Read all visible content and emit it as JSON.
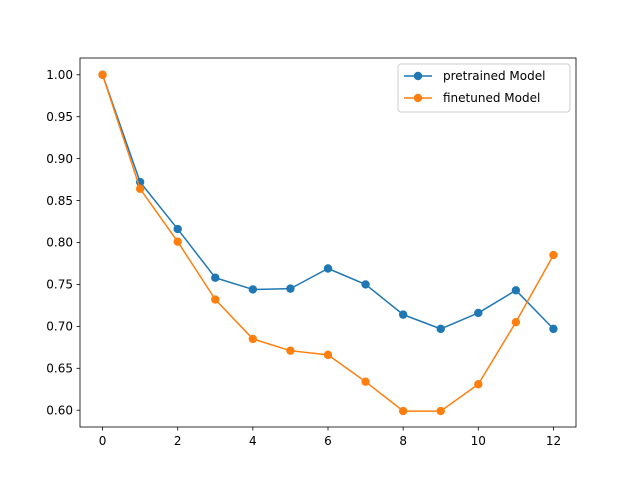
{
  "chart_data": {
    "type": "line",
    "x": [
      0,
      1,
      2,
      3,
      4,
      5,
      6,
      7,
      8,
      9,
      10,
      11,
      12
    ],
    "series": [
      {
        "name": "pretrained Model",
        "color": "#1f77b4",
        "values": [
          1.0,
          0.872,
          0.816,
          0.758,
          0.744,
          0.745,
          0.769,
          0.75,
          0.714,
          0.697,
          0.716,
          0.743,
          0.697
        ]
      },
      {
        "name": "finetuned Model",
        "color": "#ff7f0e",
        "values": [
          1.0,
          0.864,
          0.801,
          0.732,
          0.685,
          0.671,
          0.666,
          0.634,
          0.599,
          0.599,
          0.631,
          0.705,
          0.785
        ]
      }
    ],
    "xlim": [
      -0.6,
      12.6
    ],
    "ylim": [
      0.58,
      1.02
    ],
    "xticks": [
      0,
      2,
      4,
      6,
      8,
      10,
      12
    ],
    "xtick_labels": [
      "0",
      "2",
      "4",
      "6",
      "8",
      "10",
      "12"
    ],
    "yticks": [
      0.6,
      0.65,
      0.7,
      0.75,
      0.8,
      0.85,
      0.9,
      0.95,
      1.0
    ],
    "ytick_labels": [
      "0.60",
      "0.65",
      "0.70",
      "0.75",
      "0.80",
      "0.85",
      "0.90",
      "0.95",
      "1.00"
    ],
    "title": "",
    "xlabel": "",
    "ylabel": "",
    "grid": false,
    "legend_position": "top-right"
  }
}
